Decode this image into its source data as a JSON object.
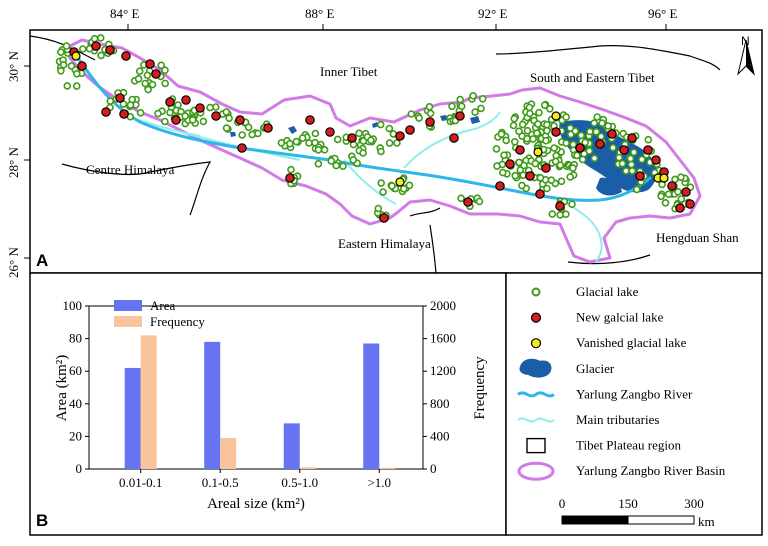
{
  "map": {
    "panel_letter": "A",
    "longitude_labels": [
      "84° E",
      "88° E",
      "92° E",
      "96° E"
    ],
    "latitude_labels": [
      "30° N",
      "28° N",
      "26° N"
    ],
    "region_labels": [
      "Inner Tibet",
      "South and Eastern Tibet",
      "Centre Himalaya",
      "Eastern Himalaya",
      "Hengduan Shan"
    ],
    "north_arrow_label": "N",
    "colors": {
      "basin": "#d27be6",
      "river": "#2fb6e9",
      "tributary": "#8feee9",
      "glacier": "#1b5ea7",
      "glacial_lake": "#3f9a19",
      "new_lake": "#d61d1d",
      "vanished_lake": "#f2ec1a"
    }
  },
  "chart": {
    "panel_letter": "B",
    "chart_data": {
      "type": "bar",
      "categories": [
        "0.01-0.1",
        "0.1-0.5",
        "0.5-1.0",
        ">1.0"
      ],
      "series": [
        {
          "name": "Area",
          "axis": "left",
          "color": "#6673f2",
          "values": [
            62,
            78,
            28,
            77
          ]
        },
        {
          "name": "Frequency",
          "axis": "right",
          "color": "#f9c49c",
          "values": [
            1640,
            380,
            20,
            15
          ]
        }
      ],
      "xlabel": "Areal size (km²)",
      "ylabel_left": "Area (km²)",
      "ylabel_right": "Frequency",
      "ylim_left": [
        0,
        100
      ],
      "ylim_right": [
        0,
        2000
      ],
      "yticks_left": [
        "0",
        "20",
        "40",
        "60",
        "80",
        "100"
      ],
      "yticks_right": [
        "0",
        "400",
        "800",
        "1200",
        "1600",
        "2000"
      ],
      "legend_position": "top-left",
      "grid": false
    }
  },
  "legend": {
    "items": [
      {
        "label": "Glacial lake",
        "symbol": "glacial-lake"
      },
      {
        "label": "New galcial lake",
        "symbol": "new-lake"
      },
      {
        "label": "Vanished glacial lake",
        "symbol": "vanished-lake"
      },
      {
        "label": "Glacier",
        "symbol": "glacier"
      },
      {
        "label": "Yarlung Zangbo River",
        "symbol": "river"
      },
      {
        "label": "Main tributaries",
        "symbol": "tributary"
      },
      {
        "label": "Tibet Plateau region",
        "symbol": "plateau"
      },
      {
        "label": "Yarlung Zangbo River Basin",
        "symbol": "basin"
      }
    ],
    "scale_bar": {
      "ticks": [
        "0",
        "150",
        "300"
      ],
      "unit": "km"
    }
  }
}
